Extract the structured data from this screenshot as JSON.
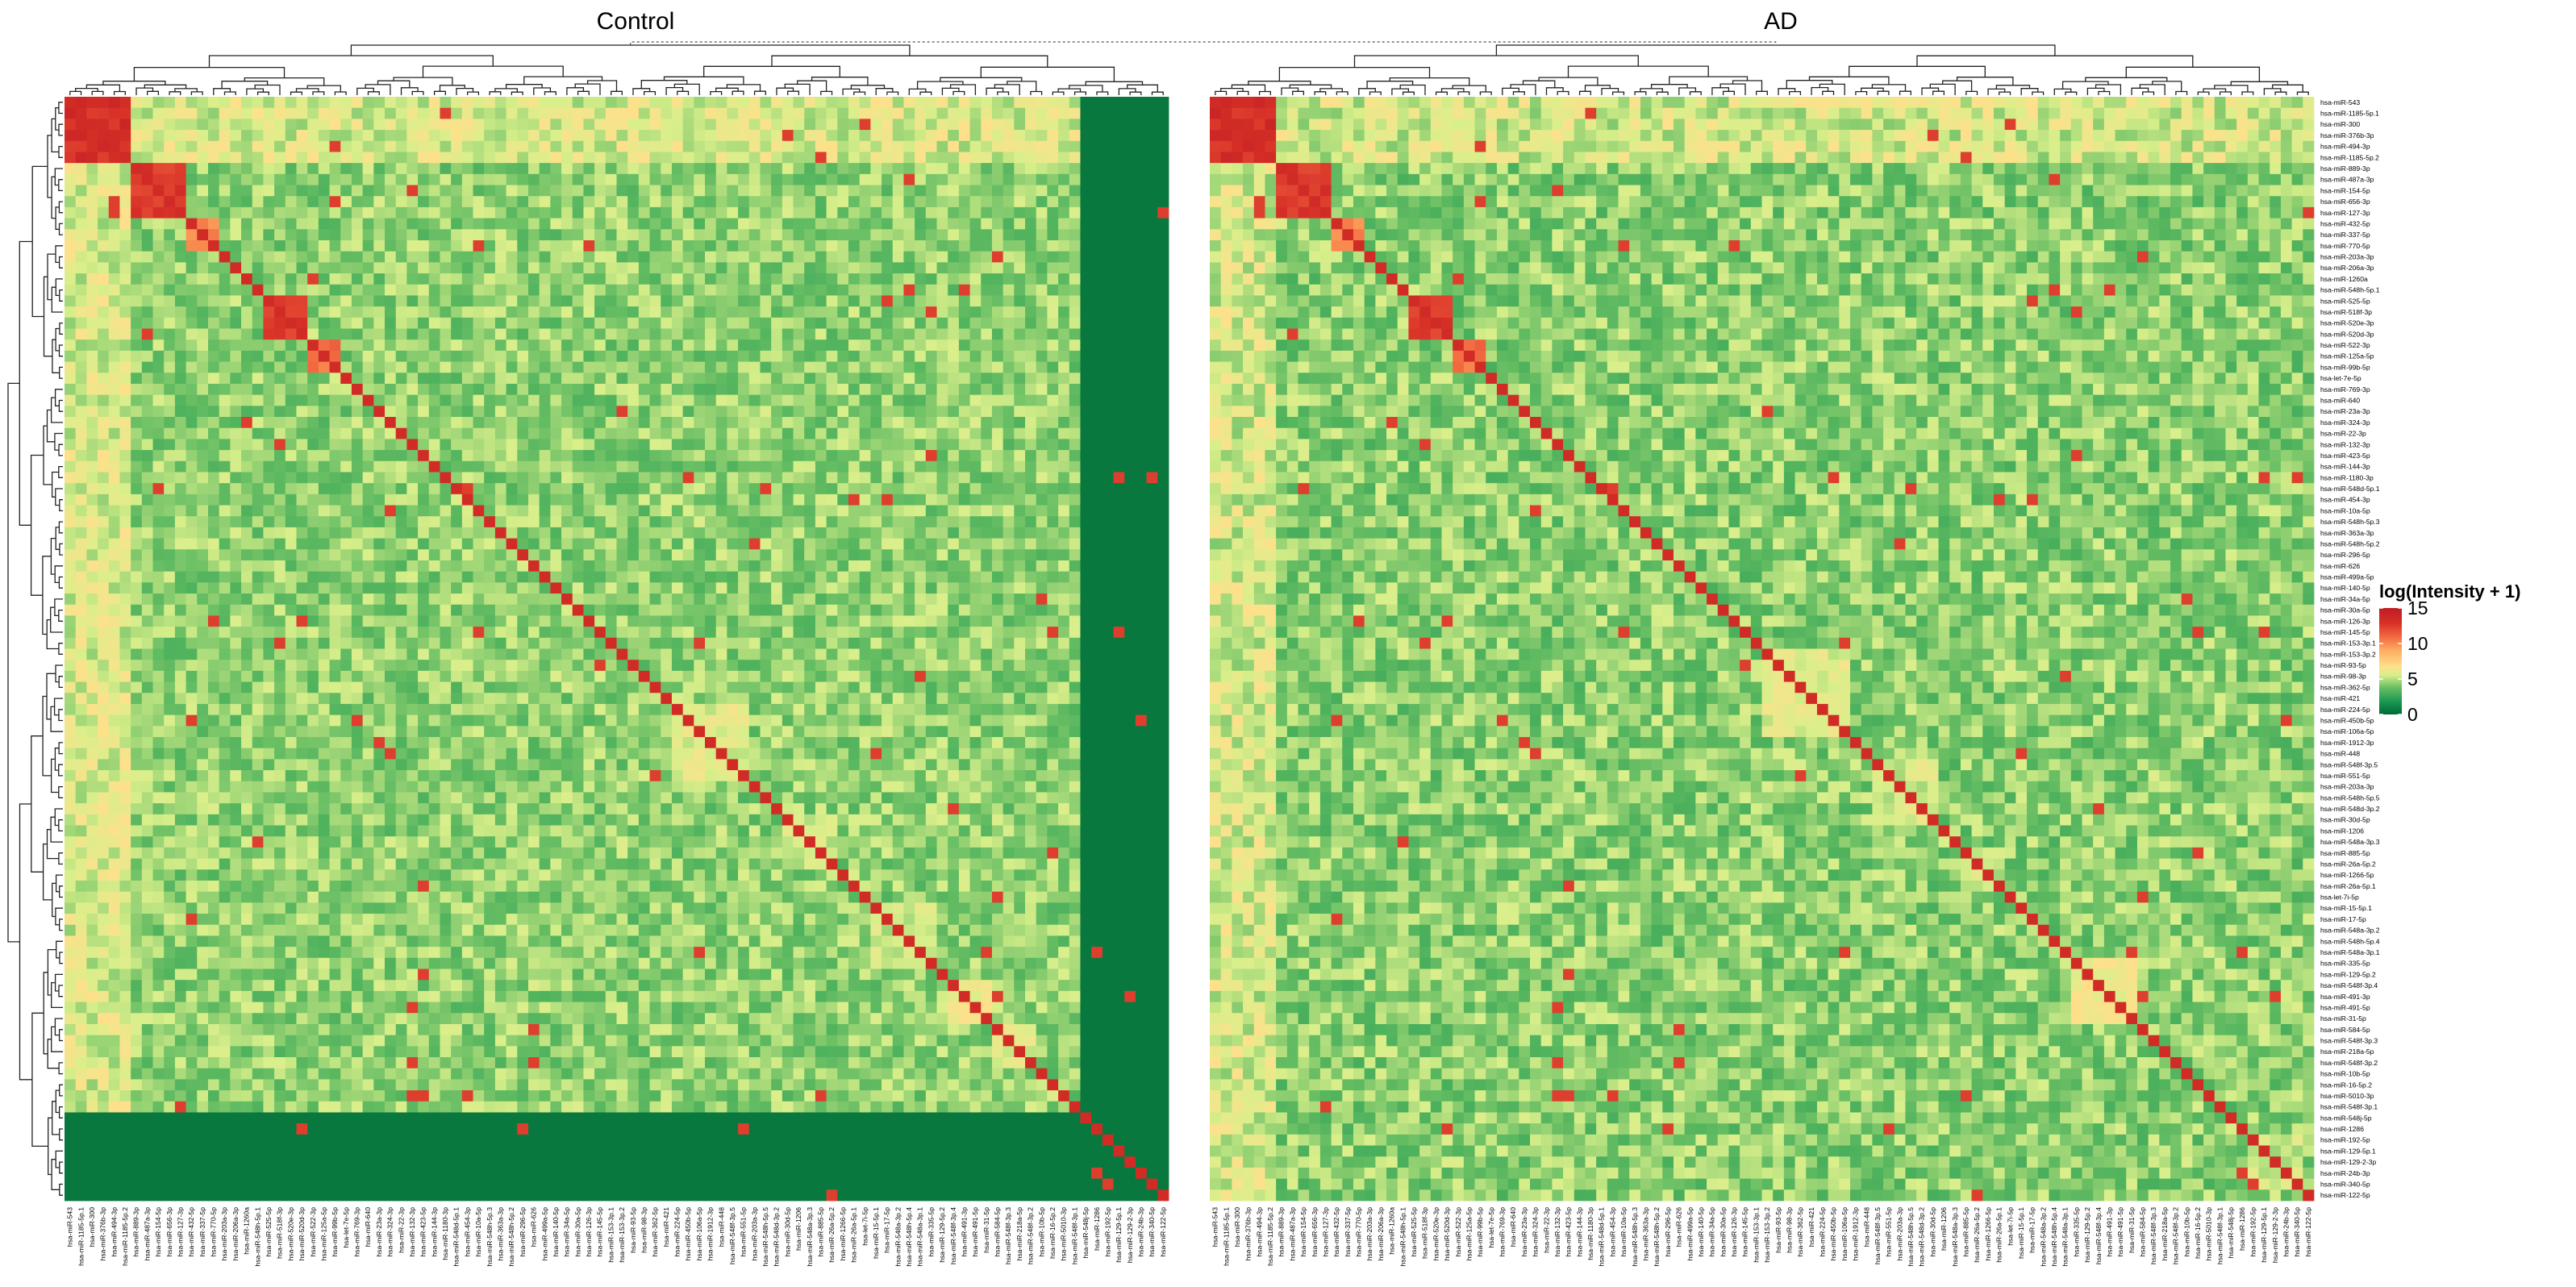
{
  "chart_data": {
    "type": "heatmap",
    "panels": [
      {
        "title": "Control"
      },
      {
        "title": "AD"
      }
    ],
    "row_labels": [
      "hsa-miR-543",
      "hsa-miR-1185-5p.1",
      "hsa-miR-300",
      "hsa-miR-376b-3p",
      "hsa-miR-494-3p",
      "hsa-miR-1185-5p.2",
      "hsa-miR-889-3p",
      "hsa-miR-487a-3p",
      "hsa-miR-154-5p",
      "hsa-miR-656-3p",
      "hsa-miR-127-3p",
      "hsa-miR-432-5p",
      "hsa-miR-337-5p",
      "hsa-miR-770-5p",
      "hsa-miR-203a-3p",
      "hsa-miR-206a-3p",
      "hsa-miR-1260a",
      "hsa-miR-548h-5p.1",
      "hsa-miR-525-5p",
      "hsa-miR-518f-3p",
      "hsa-miR-520e-3p",
      "hsa-miR-520d-3p",
      "hsa-miR-522-3p",
      "hsa-miR-125a-5p",
      "hsa-miR-99b-5p",
      "hsa-let-7e-5p",
      "hsa-miR-769-3p",
      "hsa-miR-640",
      "hsa-miR-23a-3p",
      "hsa-miR-324-3p",
      "hsa-miR-22-3p",
      "hsa-miR-132-3p",
      "hsa-miR-423-5p",
      "hsa-miR-144-3p",
      "hsa-miR-1180-3p",
      "hsa-miR-548d-5p.1",
      "hsa-miR-454-3p",
      "hsa-miR-10a-5p",
      "hsa-miR-548h-5p.3",
      "hsa-miR-363a-3p",
      "hsa-miR-548h-5p.2",
      "hsa-miR-296-5p",
      "hsa-miR-626",
      "hsa-miR-499a-5p",
      "hsa-miR-140-5p",
      "hsa-miR-34a-5p",
      "hsa-miR-30a-5p",
      "hsa-miR-126-3p",
      "hsa-miR-145-5p",
      "hsa-miR-153-3p.1",
      "hsa-miR-153-3p.2",
      "hsa-miR-93-5p",
      "hsa-miR-98-3p",
      "hsa-miR-362-5p",
      "hsa-miR-421",
      "hsa-miR-224-5p",
      "hsa-miR-450b-5p",
      "hsa-miR-106a-5p",
      "hsa-miR-1912-3p",
      "hsa-miR-448",
      "hsa-miR-548f-3p.5",
      "hsa-miR-551-5p",
      "hsa-miR-203a-3p",
      "hsa-miR-548h-5p.5",
      "hsa-miR-548d-3p.2",
      "hsa-miR-30d-5p",
      "hsa-miR-1206",
      "hsa-miR-548a-3p.3",
      "hsa-miR-885-5p",
      "hsa-miR-26a-5p.2",
      "hsa-miR-1266-5p",
      "hsa-miR-26a-5p.1",
      "hsa-let-7i-5p",
      "hsa-miR-15-5p.1",
      "hsa-miR-17-5p",
      "hsa-miR-548a-3p.2",
      "hsa-miR-548h-5p.4",
      "hsa-miR-548a-3p.1",
      "hsa-miR-335-5p",
      "hsa-miR-129-5p.2",
      "hsa-miR-548f-3p.4",
      "hsa-miR-491-3p",
      "hsa-miR-491-5p",
      "hsa-miR-31-5p",
      "hsa-miR-584-5p",
      "hsa-miR-548f-3p.3",
      "hsa-miR-218a-5p",
      "hsa-miR-548f-3p.2",
      "hsa-miR-10b-5p",
      "hsa-miR-16-5p.2",
      "hsa-miR-5010-3p",
      "hsa-miR-548f-3p.1",
      "hsa-miR-548j-5p",
      "hsa-miR-1286",
      "hsa-miR-192-5p",
      "hsa-miR-129-5p.1",
      "hsa-miR-129-2-3p",
      "hsa-miR-24b-3p",
      "hsa-miR-340-5p",
      "hsa-miR-122-5p"
    ],
    "value_label": "log(Intensity + 1)",
    "colorbar": {
      "min": 0,
      "max": 15,
      "ticks": [
        0,
        5,
        10,
        15
      ],
      "colors": [
        "#006837",
        "#1a9850",
        "#66bd63",
        "#d9ef8b",
        "#fee08b",
        "#fdae61",
        "#f46d43",
        "#d73027",
        "#bf1c24"
      ]
    },
    "legend_placement": "right",
    "row_dendrogram": "left",
    "column_dendrogram": "top",
    "matrix_note": "Square co-expression matrices; column order follows row order within each panel"
  }
}
